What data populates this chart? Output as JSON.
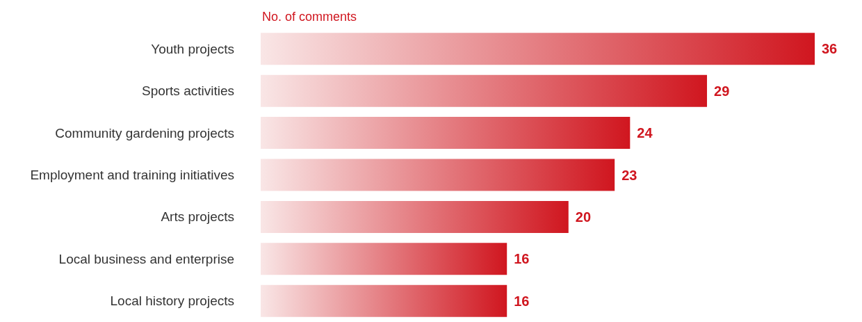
{
  "chart_data": {
    "type": "bar",
    "orientation": "horizontal",
    "title": "No. of comments",
    "categories": [
      "Youth projects",
      "Sports activities",
      "Community gardening projects",
      "Employment and training initiatives",
      "Arts projects",
      "Local business and enterprise",
      "Local history projects"
    ],
    "values": [
      36,
      29,
      24,
      23,
      20,
      16,
      16
    ],
    "color": "#d0161f",
    "xlim": [
      0,
      36
    ],
    "data_labels": true,
    "tick_labels": "y"
  }
}
